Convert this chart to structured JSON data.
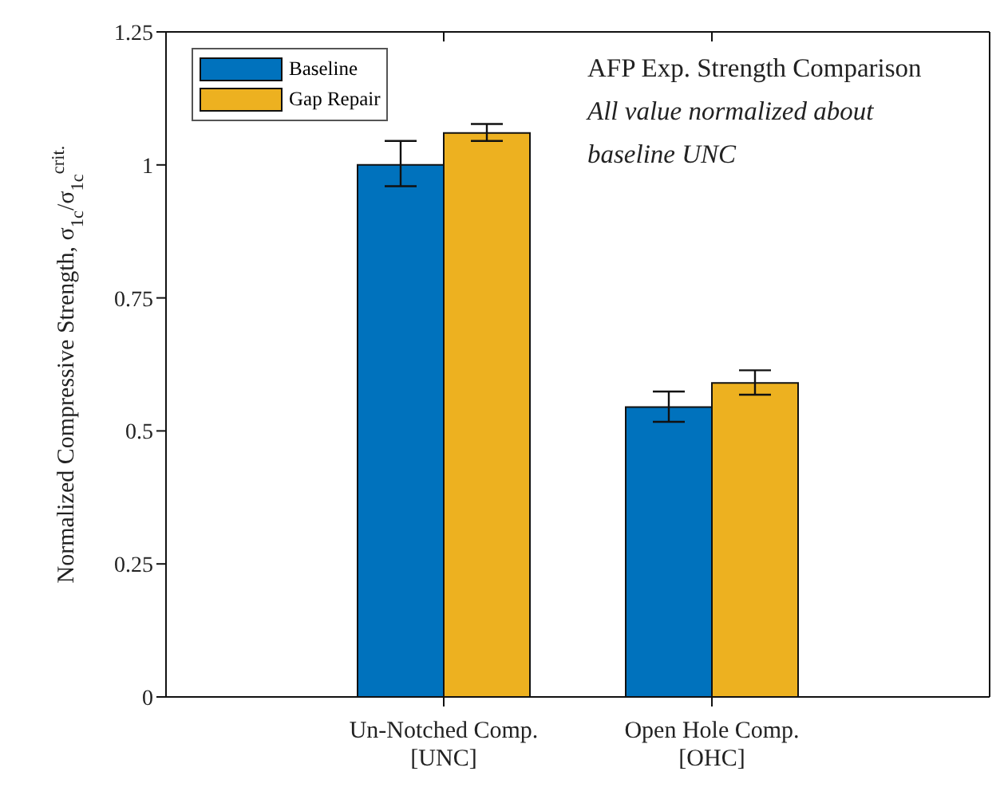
{
  "chart_data": {
    "type": "bar",
    "annotations": [
      "AFP Exp. Strength Comparison",
      "All value normalized about",
      "baseline UNC"
    ],
    "ylabel": "Normalized Compressive Strength, σ$_{1c}$/σ$_{1c}$$^{crit.}$",
    "categories": [
      "Un-Notched Comp.\n[UNC]",
      "Open Hole Comp.\n[OHC]"
    ],
    "series": [
      {
        "name": "Baseline",
        "color": "#0072bd",
        "values": [
          1.0,
          0.545
        ],
        "errors": [
          [
            0.96,
            1.045
          ],
          [
            0.517,
            0.574
          ]
        ]
      },
      {
        "name": "Gap Repair",
        "color": "#edb120",
        "values": [
          1.06,
          0.59
        ],
        "errors": [
          [
            1.045,
            1.077
          ],
          [
            0.568,
            0.614
          ]
        ]
      }
    ],
    "ylim": [
      0,
      1.25
    ],
    "yticks": [
      0,
      0.25,
      0.5,
      0.75,
      1,
      1.25
    ],
    "grid": false,
    "legend": "top left"
  }
}
